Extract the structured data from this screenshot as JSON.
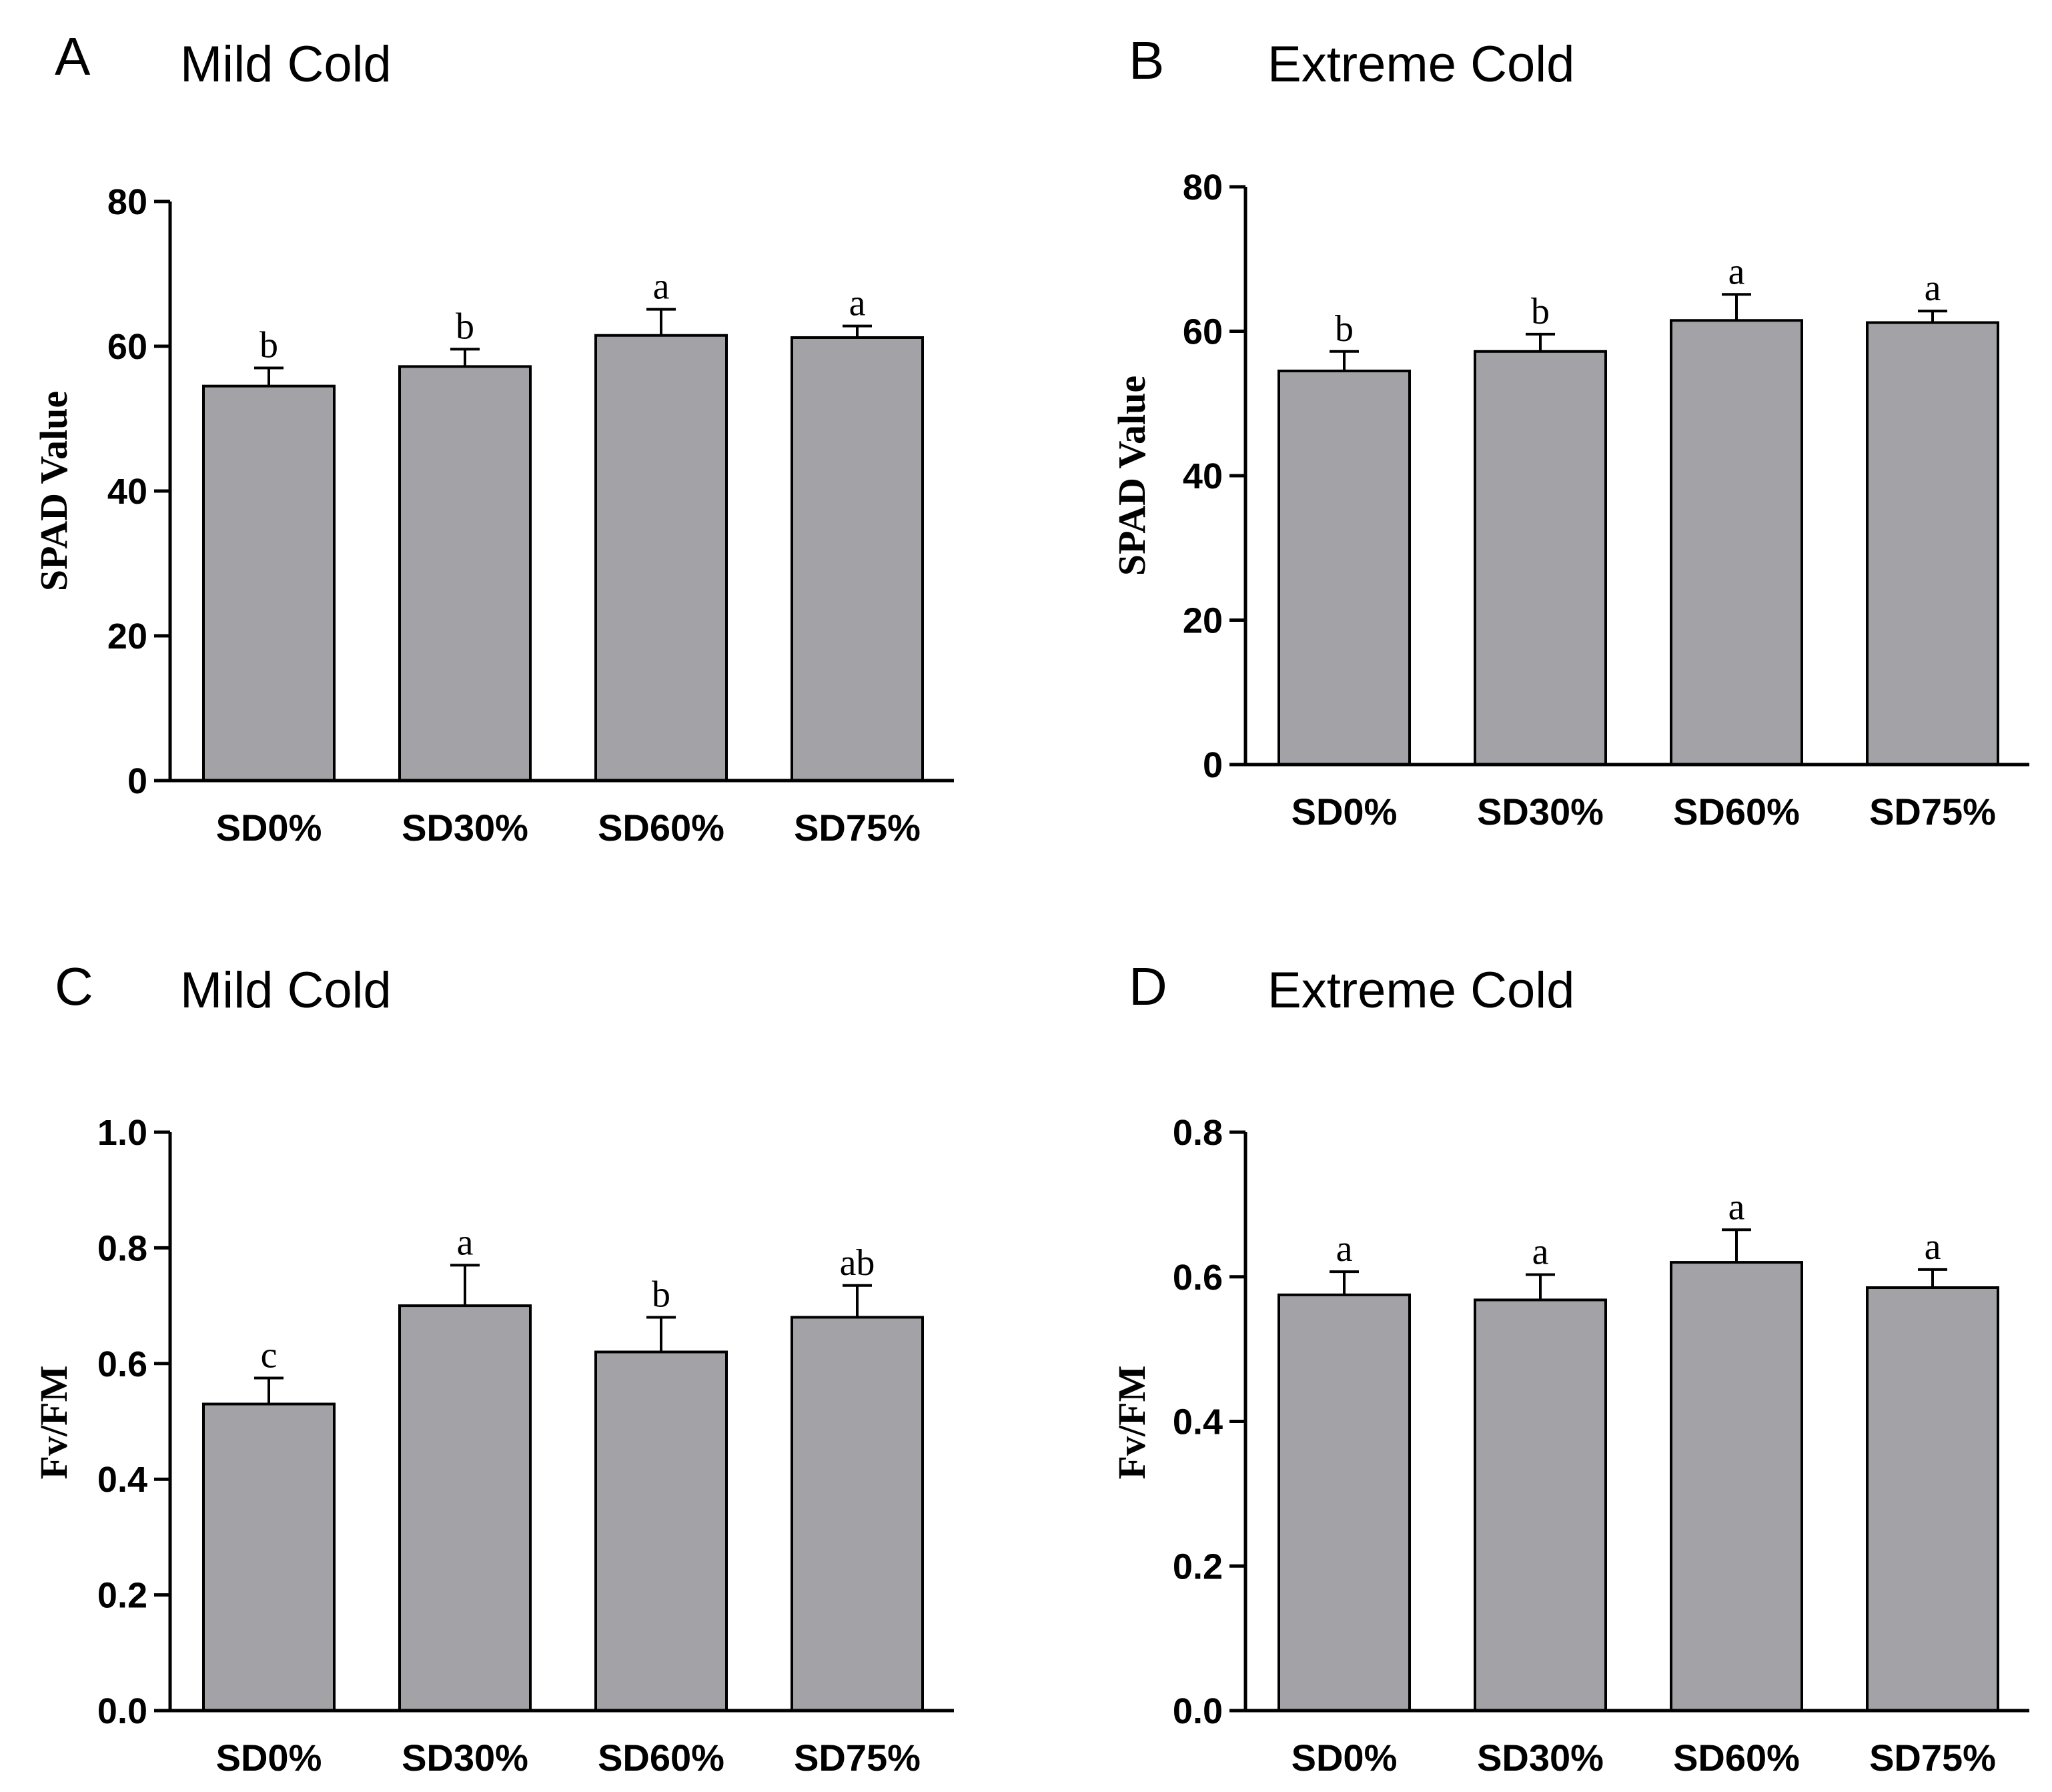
{
  "chart_data": [
    {
      "type": "bar",
      "panel": "A",
      "title": "Mild Cold",
      "ylabel": "SPAD Value",
      "xlabel": "",
      "ylim": [
        0,
        80
      ],
      "yticks": [
        "0",
        "20",
        "40",
        "60",
        "80"
      ],
      "ytick_values": [
        0,
        20,
        40,
        60,
        80
      ],
      "categories": [
        "SD0%",
        "SD30%",
        "SD60%",
        "SD75%"
      ],
      "values": [
        54.5,
        57.2,
        61.5,
        61.2
      ],
      "errors": [
        2.5,
        2.4,
        3.6,
        1.6
      ],
      "significance": [
        "b",
        "b",
        "a",
        "a"
      ]
    },
    {
      "type": "bar",
      "panel": "B",
      "title": "Extreme Cold",
      "ylabel": "SPAD Value",
      "xlabel": "",
      "ylim": [
        0,
        80
      ],
      "yticks": [
        "0",
        "20",
        "40",
        "60",
        "80"
      ],
      "ytick_values": [
        0,
        20,
        40,
        60,
        80
      ],
      "categories": [
        "SD0%",
        "SD30%",
        "SD60%",
        "SD75%"
      ],
      "values": [
        54.5,
        57.2,
        61.5,
        61.2
      ],
      "errors": [
        2.7,
        2.4,
        3.6,
        1.6
      ],
      "significance": [
        "b",
        "b",
        "a",
        "a"
      ]
    },
    {
      "type": "bar",
      "panel": "C",
      "title": "Mild Cold",
      "ylabel": "Fv/FM",
      "xlabel": "",
      "ylim": [
        0,
        1.0
      ],
      "yticks": [
        "0.0",
        "0.2",
        "0.4",
        "0.6",
        "0.8",
        "1.0"
      ],
      "ytick_values": [
        0,
        0.2,
        0.4,
        0.6,
        0.8,
        1.0
      ],
      "categories": [
        "SD0%",
        "SD30%",
        "SD60%",
        "SD75%"
      ],
      "values": [
        0.53,
        0.7,
        0.62,
        0.68
      ],
      "errors": [
        0.045,
        0.07,
        0.06,
        0.055
      ],
      "significance": [
        "c",
        "a",
        "b",
        "ab"
      ]
    },
    {
      "type": "bar",
      "panel": "D",
      "title": "Extreme Cold",
      "ylabel": "Fv/FM",
      "xlabel": "",
      "ylim": [
        0,
        0.8
      ],
      "yticks": [
        "0.0",
        "0.2",
        "0.4",
        "0.6",
        "0.8"
      ],
      "ytick_values": [
        0,
        0.2,
        0.4,
        0.6,
        0.8
      ],
      "categories": [
        "SD0%",
        "SD30%",
        "SD60%",
        "SD75%"
      ],
      "values": [
        0.575,
        0.568,
        0.62,
        0.585
      ],
      "errors": [
        0.032,
        0.035,
        0.045,
        0.025
      ],
      "significance": [
        "a",
        "a",
        "a",
        "a"
      ]
    }
  ]
}
